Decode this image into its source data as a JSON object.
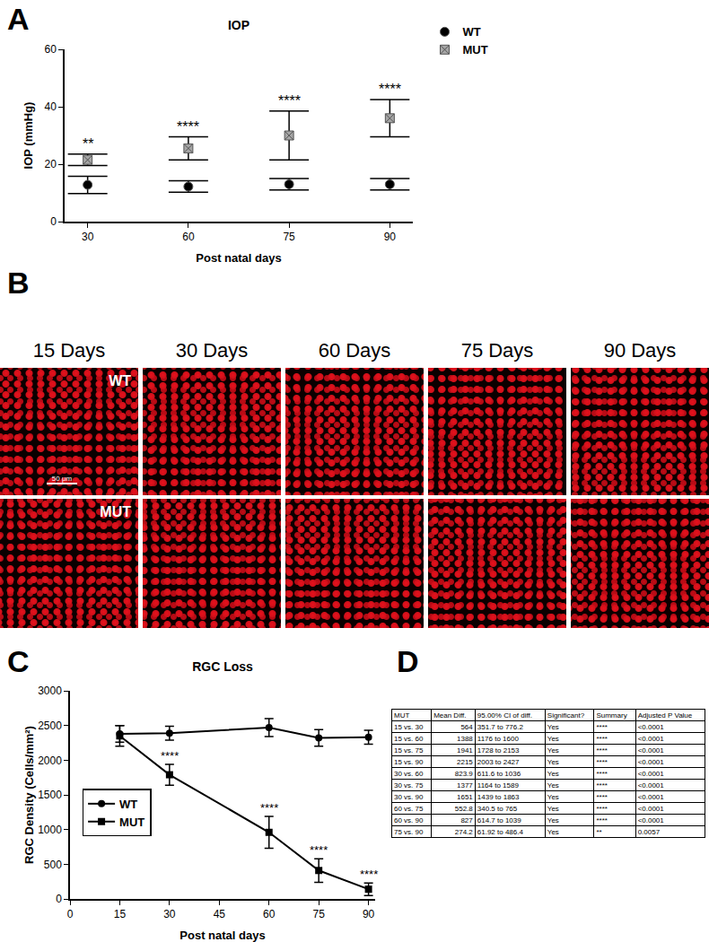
{
  "chart_data": [
    {
      "panel": "A",
      "type": "scatter",
      "title": "IOP",
      "x_label": "Post natal days",
      "y_label": "IOP (mmHg)",
      "categories": [
        "30",
        "60",
        "75",
        "90"
      ],
      "ylim": [
        0,
        60
      ],
      "yticks": [
        0,
        20,
        40,
        60
      ],
      "legend": "top right",
      "series": [
        {
          "name": "WT",
          "color": "#000000",
          "marker": "circle",
          "values": [
            12.8,
            12.2,
            13,
            13
          ],
          "error": [
            3,
            2,
            2,
            2
          ]
        },
        {
          "name": "MUT",
          "color": "#a6a6a6",
          "marker": "square-x",
          "values": [
            21.5,
            25.5,
            30,
            36
          ],
          "error": [
            2,
            4,
            8.5,
            6.5
          ],
          "significance": [
            "**",
            "****",
            "****",
            "****"
          ]
        }
      ]
    },
    {
      "panel": "C",
      "type": "line",
      "title": "RGC Loss",
      "x_label": "Post natal days",
      "y_label": "RGC Density (Cells/mm²)",
      "x": [
        15,
        30,
        60,
        75,
        90
      ],
      "xlim": [
        0,
        92
      ],
      "xticks": [
        0,
        15,
        30,
        45,
        60,
        75,
        90
      ],
      "ylim": [
        0,
        3000
      ],
      "yticks": [
        0,
        500,
        1000,
        1500,
        2000,
        2500,
        3000
      ],
      "legend": "bottom left",
      "series": [
        {
          "name": "WT",
          "color": "#000000",
          "marker": "circle",
          "values": [
            2380,
            2390,
            2470,
            2320,
            2330
          ],
          "error": [
            120,
            100,
            130,
            120,
            100
          ]
        },
        {
          "name": "MUT",
          "color": "#000000",
          "marker": "square",
          "values": [
            2350,
            1790,
            960,
            410,
            140
          ],
          "error": [
            150,
            150,
            230,
            170,
            90
          ],
          "significance": [
            null,
            "****",
            "****",
            "****",
            "****"
          ]
        }
      ]
    }
  ],
  "images": {
    "panel": "B",
    "columns": [
      "15 Days",
      "30 Days",
      "60 Days",
      "75 Days",
      "90 Days"
    ],
    "rows": [
      "WT",
      "MUT"
    ],
    "scale_bar": "50 μm"
  },
  "table": {
    "panel": "D",
    "header": [
      "MUT",
      "Mean Diff.",
      "95.00% CI of diff.",
      "Significant?",
      "Summary",
      "Adjusted P Value"
    ],
    "rows": [
      [
        "15 vs. 30",
        "564",
        "351.7 to 776.2",
        "Yes",
        "****",
        "<0.0001"
      ],
      [
        "15 vs. 60",
        "1388",
        "1176 to 1600",
        "Yes",
        "****",
        "<0.0001"
      ],
      [
        "15 vs. 75",
        "1941",
        "1728 to 2153",
        "Yes",
        "****",
        "<0.0001"
      ],
      [
        "15 vs. 90",
        "2215",
        "2003 to 2427",
        "Yes",
        "****",
        "<0.0001"
      ],
      [
        "30 vs. 60",
        "823.9",
        "611.6 to 1036",
        "Yes",
        "****",
        "<0.0001"
      ],
      [
        "30 vs. 75",
        "1377",
        "1164 to 1589",
        "Yes",
        "****",
        "<0.0001"
      ],
      [
        "30 vs. 90",
        "1651",
        "1439 to 1863",
        "Yes",
        "****",
        "<0.0001"
      ],
      [
        "60 vs. 75",
        "552.8",
        "340.5 to 765",
        "Yes",
        "****",
        "<0.0001"
      ],
      [
        "60 vs. 90",
        "827",
        "614.7 to 1039",
        "Yes",
        "****",
        "<0.0001"
      ],
      [
        "75 vs. 90",
        "274.2",
        "61.92 to 486.4",
        "Yes",
        "**",
        "0.0057"
      ]
    ]
  }
}
